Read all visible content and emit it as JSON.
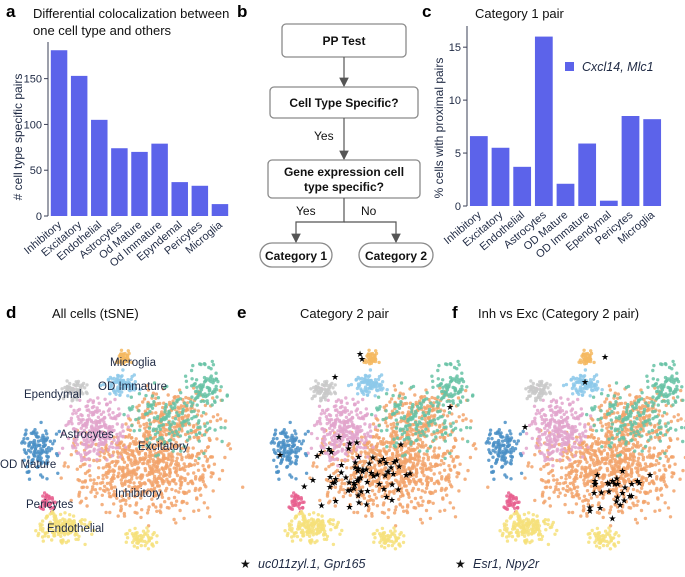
{
  "colors": {
    "bar": "#5c63ea",
    "axis": "#3a3f55",
    "text": "#1f2a44",
    "flow_stroke": "#8a8a8a",
    "cell_types": {
      "Inhibitory": "#f2a36b",
      "Excitatory": "#66c2a5",
      "Astrocytes": "#e2a4cc",
      "OD Mature": "#4a8fc6",
      "OD Immature": "#8dc9ea",
      "Ependymal": "#c9c9c9",
      "Microglia": "#f4b860",
      "Pericytes": "#e8608f",
      "Endothelial": "#f6e07a"
    }
  },
  "panel_letters": [
    "a",
    "b",
    "c",
    "d",
    "e",
    "f"
  ],
  "chart_data": [
    {
      "type": "bar",
      "title": "Differential colocalization between one cell type and others",
      "title_lines": [
        "Differential colocalization between",
        "one cell type and others"
      ],
      "xlabel": "",
      "ylabel": "# cell type specific pairs",
      "categories": [
        "Inhibitory",
        "Excitatory",
        "Endothelial",
        "Astrocytes",
        "Od Mature",
        "Od Immature",
        "Epyndemal",
        "Pericytes",
        "Microglia"
      ],
      "values": [
        181,
        153,
        105,
        74,
        70,
        79,
        37,
        33,
        13
      ],
      "ylim": [
        0,
        190
      ],
      "yticks": [
        0,
        50,
        100,
        150
      ]
    },
    {
      "type": "bar",
      "title": "Category 1 pair",
      "xlabel": "",
      "ylabel": "% cells with proximal pairs",
      "legend": "Cxcl14, Mlc1",
      "legend_position": "top-right",
      "categories": [
        "Inhibitory",
        "Excitatory",
        "Endothelial",
        "Astrocytes",
        "OD Mature",
        "OD Immature",
        "Ependymal",
        "Pericytes",
        "Microglia"
      ],
      "values": [
        6.6,
        5.5,
        3.7,
        16.0,
        2.1,
        5.9,
        0.5,
        8.5,
        8.2
      ],
      "ylim": [
        0,
        17
      ],
      "yticks": [
        0,
        5,
        10,
        15
      ]
    },
    {
      "type": "scatter",
      "title": "All cells (tSNE)",
      "xlabel": "",
      "ylabel": "",
      "series": [
        {
          "name": "Inhibitory"
        },
        {
          "name": "Excitatory"
        },
        {
          "name": "Astrocytes"
        },
        {
          "name": "OD Mature"
        },
        {
          "name": "OD Immature"
        },
        {
          "name": "Ependymal"
        },
        {
          "name": "Microglia"
        },
        {
          "name": "Pericytes"
        },
        {
          "name": "Endothelial"
        }
      ]
    },
    {
      "type": "scatter",
      "title": "Category 2 pair",
      "xlabel": "",
      "ylabel": "",
      "legend": "uc011zyl.1, Gpr165"
    },
    {
      "type": "scatter",
      "title": "Inh vs Exc (Category 2 pair)",
      "xlabel": "",
      "ylabel": "",
      "legend": "Esr1, Npy2r"
    }
  ],
  "flowchart": {
    "nodes": {
      "pp_test": "PP Test",
      "cell_type_specific": "Cell Type Specific?",
      "gene_expr_line1": "Gene expression cell",
      "gene_expr_line2": "type specific?",
      "category1": "Category 1",
      "category2": "Category 2"
    },
    "edges": {
      "yes1": "Yes",
      "yes2": "Yes",
      "no": "No"
    }
  },
  "star_glyph": "★"
}
